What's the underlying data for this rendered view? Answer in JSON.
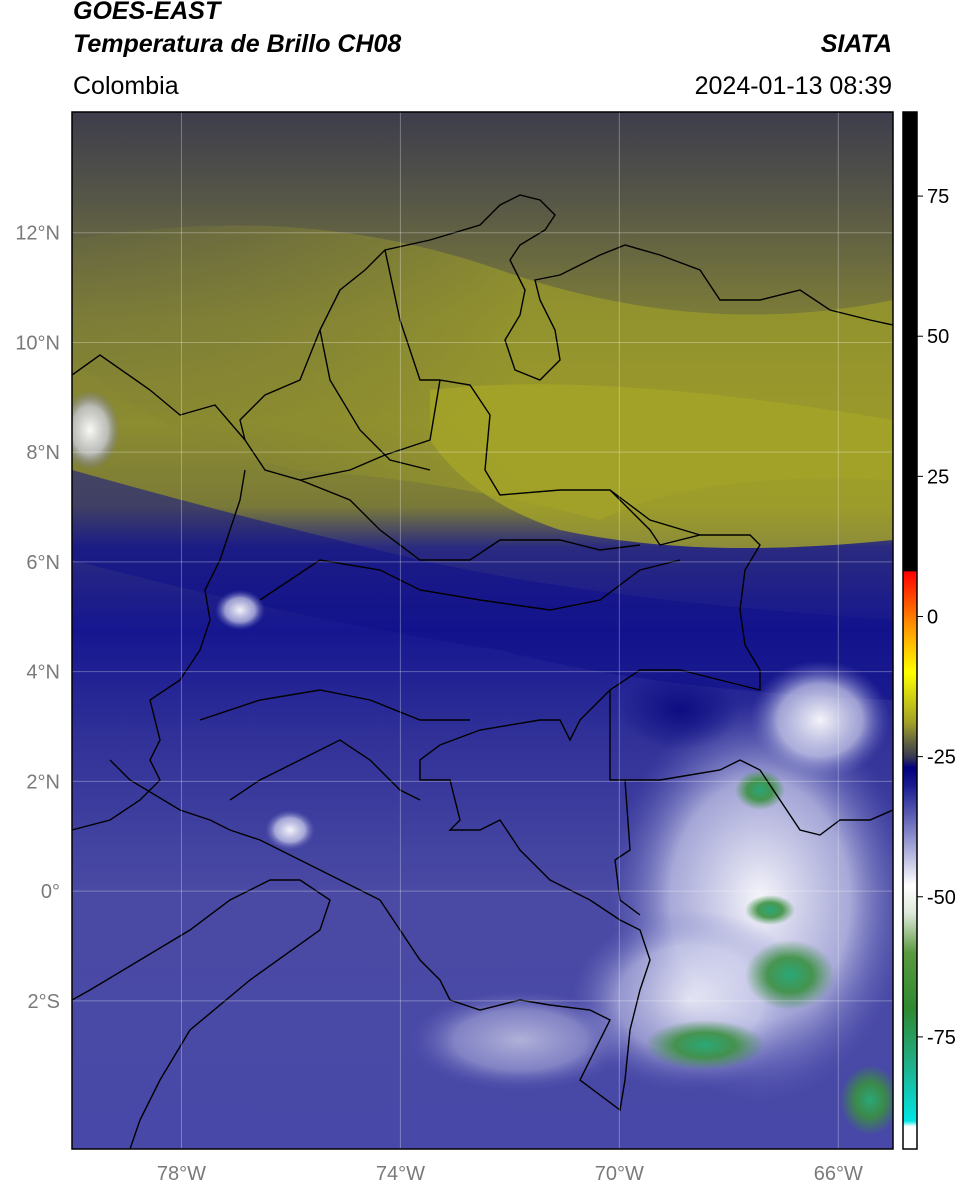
{
  "header": {
    "line1": "GOES-EAST",
    "line2": "Temperatura de Brillo CH08",
    "region": "Colombia",
    "source": "SIATA",
    "datetime": "2024-01-13 08:39"
  },
  "map": {
    "lon_range": [
      -80,
      -65
    ],
    "lat_range": [
      -4.7,
      14.2
    ],
    "lon_ticks": [
      {
        "value": -78,
        "label": "78°W"
      },
      {
        "value": -74,
        "label": "74°W"
      },
      {
        "value": -70,
        "label": "70°W"
      },
      {
        "value": -66,
        "label": "66°W"
      }
    ],
    "lat_ticks": [
      {
        "value": 12,
        "label": "12°N"
      },
      {
        "value": 10,
        "label": "10°N"
      },
      {
        "value": 8,
        "label": "8°N"
      },
      {
        "value": 6,
        "label": "6°N"
      },
      {
        "value": 4,
        "label": "4°N"
      },
      {
        "value": 2,
        "label": "2°N"
      },
      {
        "value": 0,
        "label": "0°"
      },
      {
        "value": -2,
        "label": "2°S"
      }
    ],
    "grid": true
  },
  "colorbar": {
    "range": [
      -95,
      90
    ],
    "ticks": [
      {
        "value": 75,
        "label": "75"
      },
      {
        "value": 50,
        "label": "50"
      },
      {
        "value": 25,
        "label": "25"
      },
      {
        "value": 0,
        "label": "0"
      },
      {
        "value": -25,
        "label": "-25"
      },
      {
        "value": -50,
        "label": "-50"
      },
      {
        "value": -75,
        "label": "-75"
      }
    ],
    "stops": [
      {
        "value": -95,
        "color": "#ffffff"
      },
      {
        "value": -91,
        "color": "#ffffff"
      },
      {
        "value": -90,
        "color": "#00e5e5"
      },
      {
        "value": -80,
        "color": "#20b08a"
      },
      {
        "value": -70,
        "color": "#2f8a30"
      },
      {
        "value": -60,
        "color": "#5a9a40"
      },
      {
        "value": -53,
        "color": "#dde8d8"
      },
      {
        "value": -48,
        "color": "#ffffff"
      },
      {
        "value": -38,
        "color": "#7a7ec4"
      },
      {
        "value": -30,
        "color": "#1a1a90"
      },
      {
        "value": -27,
        "color": "#000080"
      },
      {
        "value": -25,
        "color": "#3a3a50"
      },
      {
        "value": -22,
        "color": "#6a6a40"
      },
      {
        "value": -19,
        "color": "#a0a028"
      },
      {
        "value": -10,
        "color": "#ffff00"
      },
      {
        "value": -2,
        "color": "#ff9900"
      },
      {
        "value": 8,
        "color": "#ff0000"
      },
      {
        "value": 8.1,
        "color": "#000000"
      },
      {
        "value": 90,
        "color": "#000000"
      }
    ]
  }
}
